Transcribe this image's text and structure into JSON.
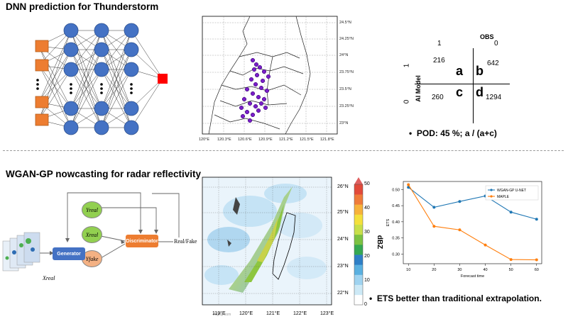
{
  "section1": {
    "title": "DNN prediction for Thunderstorm",
    "map": {
      "x_ticks": [
        "120°E",
        "120.3°E",
        "120.6°E",
        "120.9°E",
        "121.2°E",
        "121.5°E",
        "121.8°E"
      ],
      "y_ticks": [
        "24.5°N",
        "24.25°N",
        "24°N",
        "23.75°N",
        "23.5°N",
        "23.25°N",
        "23°N"
      ]
    },
    "confusion": {
      "obs_label": "OBS",
      "ai_label": "AI Model",
      "col_labels": [
        "1",
        "0"
      ],
      "row_labels": [
        "1",
        "0"
      ],
      "letters": [
        "a",
        "b",
        "c",
        "d"
      ],
      "values": [
        "216",
        "642",
        "260",
        "1294"
      ]
    },
    "bullet": "POD: 45 %;  a / (a+c)"
  },
  "section2": {
    "title": "WGAN-GP nowcasting for radar reflectivity",
    "diagram": {
      "generator": "Generator",
      "discriminator": "Discriminator",
      "real_fake": "Real/Fake",
      "yreal": "Yreal",
      "xreal_node": "Xreal",
      "yfake": "Yfake",
      "xreal_input": "Xreal"
    },
    "radar": {
      "x_ticks": [
        "119°E",
        "120°E",
        "121°E",
        "122°E",
        "123°E"
      ],
      "y_ticks": [
        "26°N",
        "25°N",
        "24°N",
        "23°N",
        "22°N"
      ],
      "colorbar_label": "dBZ",
      "colorbar_ticks": [
        "50",
        "40",
        "30",
        "20",
        "10",
        "0"
      ],
      "watermark": "imgflip.com"
    },
    "bullet": "ETS better than traditional extrapolation."
  },
  "chart_data": {
    "type": "line",
    "x": [
      10,
      20,
      30,
      40,
      50,
      60
    ],
    "series": [
      {
        "name": "WGAN-GP U-NET",
        "color": "#1f77b4",
        "values": [
          0.507,
          0.445,
          0.463,
          0.48,
          0.43,
          0.408
        ]
      },
      {
        "name": "MAPLE",
        "color": "#ff7f0e",
        "values": [
          0.515,
          0.386,
          0.375,
          0.328,
          0.283,
          0.282
        ]
      }
    ],
    "xlabel": "Forecast time",
    "ylabel": "ETS",
    "x_ticks": [
      "10",
      "20",
      "30",
      "40",
      "50",
      "60"
    ],
    "y_ticks": [
      "0.30",
      "0.35",
      "0.40",
      "0.45",
      "0.50"
    ],
    "xlim": [
      8,
      62
    ],
    "ylim": [
      0.27,
      0.525
    ],
    "legend": "top-right"
  }
}
